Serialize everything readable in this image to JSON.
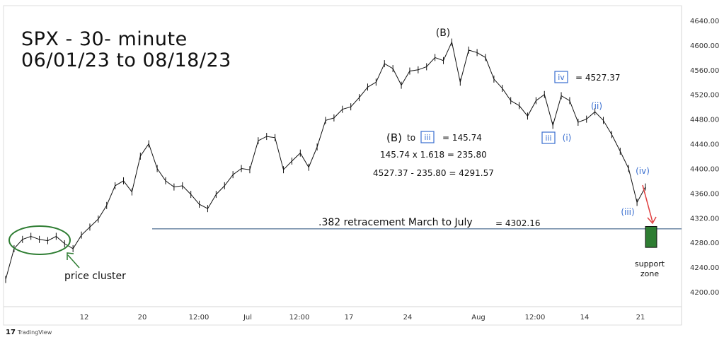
{
  "title_line1": "SPX - 30- minute",
  "title_line2": "06/01/23 to 08/18/23",
  "watermark": "TradingView",
  "chart_data": {
    "type": "line",
    "ylim": [
      4180,
      4650
    ],
    "y_ticks": [
      "4640.00",
      "4600.00",
      "4560.00",
      "4520.00",
      "4480.00",
      "4440.00",
      "4400.00",
      "4360.00",
      "4320.00",
      "4280.00",
      "4240.00",
      "4200.00"
    ],
    "y_tick_values": [
      4640,
      4600,
      4560,
      4520,
      4480,
      4440,
      4400,
      4360,
      4320,
      4280,
      4240,
      4200
    ],
    "x_ticks": [
      "12",
      "20",
      "12:00",
      "Jul",
      "12:00",
      "17",
      "24",
      "Aug",
      "12:00",
      "14",
      "21"
    ],
    "x": [
      0,
      2,
      4,
      6,
      8,
      10,
      12,
      14,
      16,
      18,
      20,
      22,
      24,
      26,
      28,
      30,
      32,
      34,
      36,
      38,
      40,
      42,
      44,
      46,
      48,
      50,
      52,
      54,
      56,
      58,
      60,
      62,
      64,
      66,
      68,
      70,
      72,
      74,
      76,
      78,
      80,
      82,
      84,
      86,
      88,
      90,
      92,
      94,
      96,
      98,
      100,
      102,
      104,
      106,
      108,
      110,
      112,
      114,
      116,
      118,
      120,
      122,
      124,
      126,
      128,
      130,
      132,
      134,
      136,
      138,
      140,
      142,
      144,
      146,
      148,
      150,
      152
    ],
    "values": [
      4220,
      4270,
      4285,
      4290,
      4285,
      4283,
      4290,
      4278,
      4270,
      4292,
      4305,
      4318,
      4340,
      4372,
      4380,
      4362,
      4420,
      4440,
      4400,
      4380,
      4370,
      4372,
      4358,
      4342,
      4335,
      4358,
      4372,
      4390,
      4400,
      4398,
      4445,
      4452,
      4450,
      4398,
      4412,
      4425,
      4402,
      4435,
      4478,
      4482,
      4496,
      4500,
      4515,
      4532,
      4540,
      4570,
      4562,
      4535,
      4558,
      4560,
      4565,
      4580,
      4575,
      4605,
      4540,
      4592,
      4588,
      4580,
      4545,
      4530,
      4510,
      4502,
      4485,
      4510,
      4520,
      4470,
      4518,
      4510,
      4475,
      4480,
      4492,
      4478,
      4455,
      4428,
      4400,
      4345,
      4370
    ],
    "wave_labels": [
      "(B)",
      "iv",
      "(ii)",
      "iii",
      "(i)",
      "(iv)",
      "(iii)"
    ],
    "annotations": {
      "iv_value": "= 4527.37",
      "b_to": "to",
      "b_value": "= 145.74",
      "calc1": "145.74 x 1.618 = 235.80",
      "calc2": "4527.37 - 235.80 = 4291.57",
      "retracement_label": ".382 retracement March to July",
      "retracement_value": "4302.16",
      "price_cluster": "price cluster",
      "support": "support",
      "zone": "zone"
    },
    "retracement_level": 4302.16,
    "support_zone": [
      4272,
      4306
    ],
    "colors": {
      "price": "#111111",
      "wave_blue": "#3a6fd0",
      "line": "#244c78",
      "ellipse": "#2e7d32",
      "zone": "#2e7d32",
      "arrow": "#e04040"
    }
  }
}
